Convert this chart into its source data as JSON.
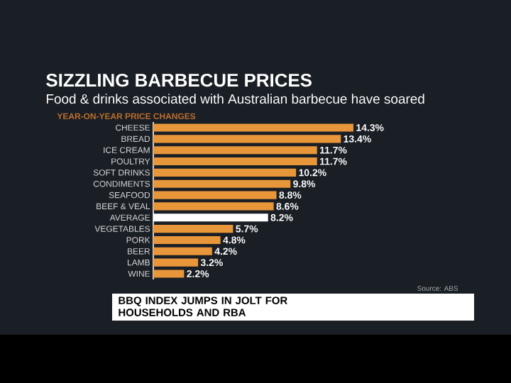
{
  "chart_data": {
    "type": "bar",
    "orientation": "horizontal",
    "title": "SIZZLING BARBECUE PRICES",
    "subtitle": "Food & drinks associated with Australian barbecue have soared",
    "categories": [
      "CHEESE",
      "BREAD",
      "ICE CREAM",
      "POULTRY",
      "SOFT DRINKS",
      "CONDIMENTS",
      "SEAFOOD",
      "BEEF & VEAL",
      "AVERAGE",
      "VEGETABLES",
      "PORK",
      "BEER",
      "LAMB",
      "WINE"
    ],
    "values": [
      14.3,
      13.4,
      11.7,
      11.7,
      10.2,
      9.8,
      8.8,
      8.6,
      8.2,
      5.7,
      4.8,
      4.2,
      3.2,
      2.2
    ],
    "value_labels": [
      "14.3%",
      "13.4%",
      "11.7%",
      "11.7%",
      "10.2%",
      "9.8%",
      "8.8%",
      "8.6%",
      "8.2%",
      "5.7%",
      "4.8%",
      "4.2%",
      "3.2%",
      "2.2%"
    ],
    "colors": [
      "#e8963a",
      "#e8963a",
      "#e8963a",
      "#e8963a",
      "#e8963a",
      "#e8963a",
      "#e8963a",
      "#e8963a",
      "#ffffff",
      "#e8963a",
      "#e8963a",
      "#e8963a",
      "#e8963a",
      "#e8963a"
    ],
    "annotations": [
      "YEAR-ON-YEAR PRICE CHANGES",
      "Source: ABS",
      "BBQ INDEX JUMPS IN JOLT FOR HOUSEHOLDS AND RBA"
    ]
  }
}
